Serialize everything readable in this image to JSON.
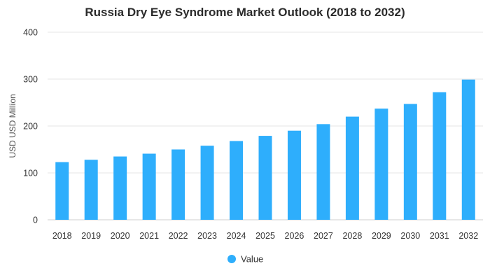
{
  "chart_data": {
    "type": "bar",
    "title": "Russia Dry Eye Syndrome Market Outlook (2018 to 2032)",
    "xlabel": "",
    "ylabel": "USD USD Million",
    "ylim": [
      0,
      400
    ],
    "yticks": [
      0,
      100,
      200,
      300,
      400
    ],
    "grid": true,
    "legend_position": "bottom",
    "categories": [
      "2018",
      "2019",
      "2020",
      "2021",
      "2022",
      "2023",
      "2024",
      "2025",
      "2026",
      "2027",
      "2028",
      "2029",
      "2030",
      "2031",
      "2032"
    ],
    "series": [
      {
        "name": "Value",
        "color": "#2eaefc",
        "values": [
          123,
          128,
          135,
          141,
          150,
          158,
          168,
          179,
          190,
          204,
          220,
          237,
          247,
          272,
          299
        ]
      }
    ]
  }
}
